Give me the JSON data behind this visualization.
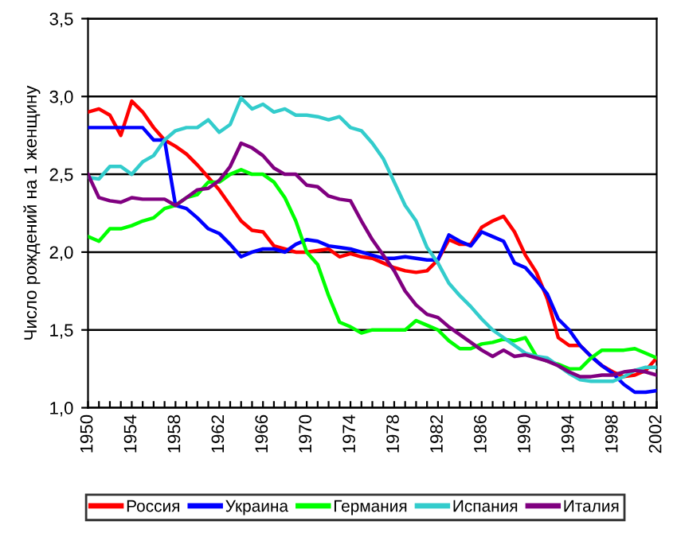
{
  "chart_data": {
    "type": "line",
    "ylabel": "Число рождений на 1 женщину",
    "x": [
      1950,
      1951,
      1952,
      1953,
      1954,
      1955,
      1956,
      1957,
      1958,
      1959,
      1960,
      1961,
      1962,
      1963,
      1964,
      1965,
      1966,
      1967,
      1968,
      1969,
      1970,
      1971,
      1972,
      1973,
      1974,
      1975,
      1976,
      1977,
      1978,
      1979,
      1980,
      1981,
      1982,
      1983,
      1984,
      1985,
      1986,
      1987,
      1988,
      1989,
      1990,
      1991,
      1992,
      1993,
      1994,
      1995,
      1996,
      1997,
      1998,
      1999,
      2000,
      2001,
      2002
    ],
    "series": [
      {
        "name": "Россия",
        "color": "#ff0000",
        "values": [
          2.9,
          2.92,
          2.88,
          2.75,
          2.97,
          2.9,
          2.8,
          2.72,
          2.68,
          2.63,
          2.56,
          2.48,
          2.4,
          2.3,
          2.2,
          2.14,
          2.13,
          2.04,
          2.02,
          2.0,
          2.0,
          2.01,
          2.02,
          1.97,
          1.99,
          1.97,
          1.96,
          1.93,
          1.9,
          1.88,
          1.87,
          1.88,
          1.95,
          2.08,
          2.05,
          2.05,
          2.16,
          2.2,
          2.23,
          2.13,
          1.98,
          1.87,
          1.7,
          1.45,
          1.4,
          1.4,
          1.33,
          1.27,
          1.23,
          1.2,
          1.21,
          1.24,
          1.32
        ]
      },
      {
        "name": "Украина",
        "color": "#0000ff",
        "values": [
          2.8,
          2.8,
          2.8,
          2.8,
          2.8,
          2.8,
          2.72,
          2.72,
          2.3,
          2.28,
          2.22,
          2.15,
          2.12,
          2.05,
          1.97,
          2.0,
          2.02,
          2.02,
          2.0,
          2.05,
          2.08,
          2.07,
          2.04,
          2.03,
          2.02,
          2.0,
          1.98,
          1.96,
          1.96,
          1.97,
          1.96,
          1.95,
          1.95,
          2.11,
          2.07,
          2.04,
          2.13,
          2.1,
          2.07,
          1.93,
          1.9,
          1.82,
          1.73,
          1.57,
          1.5,
          1.4,
          1.33,
          1.27,
          1.22,
          1.15,
          1.1,
          1.1,
          1.11
        ]
      },
      {
        "name": "Германия",
        "color": "#00ff00",
        "values": [
          2.1,
          2.07,
          2.15,
          2.15,
          2.17,
          2.2,
          2.22,
          2.28,
          2.3,
          2.35,
          2.37,
          2.45,
          2.45,
          2.5,
          2.53,
          2.5,
          2.5,
          2.45,
          2.35,
          2.2,
          2.0,
          1.92,
          1.72,
          1.55,
          1.52,
          1.48,
          1.5,
          1.5,
          1.5,
          1.5,
          1.56,
          1.53,
          1.5,
          1.43,
          1.38,
          1.38,
          1.41,
          1.42,
          1.44,
          1.43,
          1.45,
          1.33,
          1.3,
          1.28,
          1.25,
          1.25,
          1.32,
          1.37,
          1.37,
          1.37,
          1.38,
          1.35,
          1.32
        ]
      },
      {
        "name": "Испания",
        "color": "#33cccc",
        "values": [
          2.48,
          2.47,
          2.55,
          2.55,
          2.5,
          2.58,
          2.62,
          2.72,
          2.78,
          2.8,
          2.8,
          2.85,
          2.77,
          2.82,
          2.99,
          2.92,
          2.95,
          2.9,
          2.92,
          2.88,
          2.88,
          2.87,
          2.85,
          2.87,
          2.8,
          2.78,
          2.7,
          2.6,
          2.45,
          2.3,
          2.2,
          2.03,
          1.93,
          1.8,
          1.72,
          1.65,
          1.57,
          1.5,
          1.45,
          1.4,
          1.35,
          1.33,
          1.32,
          1.27,
          1.22,
          1.18,
          1.17,
          1.17,
          1.17,
          1.2,
          1.24,
          1.26,
          1.26
        ]
      },
      {
        "name": "Италия",
        "color": "#800080",
        "values": [
          2.5,
          2.35,
          2.33,
          2.32,
          2.35,
          2.34,
          2.34,
          2.34,
          2.3,
          2.35,
          2.4,
          2.41,
          2.46,
          2.55,
          2.7,
          2.67,
          2.62,
          2.54,
          2.5,
          2.5,
          2.43,
          2.42,
          2.36,
          2.34,
          2.33,
          2.2,
          2.08,
          1.98,
          1.88,
          1.75,
          1.66,
          1.6,
          1.58,
          1.52,
          1.47,
          1.42,
          1.37,
          1.33,
          1.37,
          1.33,
          1.34,
          1.32,
          1.3,
          1.27,
          1.23,
          1.2,
          1.2,
          1.21,
          1.21,
          1.23,
          1.24,
          1.23,
          1.21
        ]
      }
    ],
    "xlim": [
      1950,
      2002
    ],
    "xticks": [
      1950,
      {
        "value": 1951,
        "label": null
      },
      {
        "value": 1952,
        "label": null
      },
      {
        "value": 1953,
        "label": null
      },
      1954,
      {
        "value": 1955,
        "label": null
      },
      {
        "value": 1956,
        "label": null
      },
      {
        "value": 1957,
        "label": null
      },
      1958,
      {
        "value": 1959,
        "label": null
      },
      {
        "value": 1960,
        "label": null
      },
      {
        "value": 1961,
        "label": null
      },
      1962,
      {
        "value": 1963,
        "label": null
      },
      {
        "value": 1964,
        "label": null
      },
      {
        "value": 1965,
        "label": null
      },
      1966,
      {
        "value": 1967,
        "label": null
      },
      {
        "value": 1968,
        "label": null
      },
      {
        "value": 1969,
        "label": null
      },
      1970,
      {
        "value": 1971,
        "label": null
      },
      {
        "value": 1972,
        "label": null
      },
      {
        "value": 1973,
        "label": null
      },
      1974,
      {
        "value": 1975,
        "label": null
      },
      {
        "value": 1976,
        "label": null
      },
      {
        "value": 1977,
        "label": null
      },
      1978,
      {
        "value": 1979,
        "label": null
      },
      {
        "value": 1980,
        "label": null
      },
      {
        "value": 1981,
        "label": null
      },
      1982,
      {
        "value": 1983,
        "label": null
      },
      {
        "value": 1984,
        "label": null
      },
      {
        "value": 1985,
        "label": null
      },
      1986,
      {
        "value": 1987,
        "label": null
      },
      {
        "value": 1988,
        "label": null
      },
      {
        "value": 1989,
        "label": null
      },
      1990,
      {
        "value": 1991,
        "label": null
      },
      {
        "value": 1992,
        "label": null
      },
      {
        "value": 1993,
        "label": null
      },
      1994,
      {
        "value": 1995,
        "label": null
      },
      {
        "value": 1996,
        "label": null
      },
      {
        "value": 1997,
        "label": null
      },
      1998,
      {
        "value": 1999,
        "label": null
      },
      {
        "value": 2000,
        "label": null
      },
      {
        "value": 2001,
        "label": null
      },
      2002
    ],
    "ylim": [
      1.0,
      3.5
    ],
    "yticks": [
      {
        "value": 1.0,
        "label": "1,0"
      },
      {
        "value": 1.5,
        "label": "1,5"
      },
      {
        "value": 2.0,
        "label": "2,0"
      },
      {
        "value": 2.5,
        "label": "2,5"
      },
      {
        "value": 3.0,
        "label": "3,0"
      },
      {
        "value": 3.5,
        "label": "3,5"
      }
    ],
    "grid": "y",
    "legend": "bottom",
    "marker": "none",
    "line_style": "solid"
  }
}
